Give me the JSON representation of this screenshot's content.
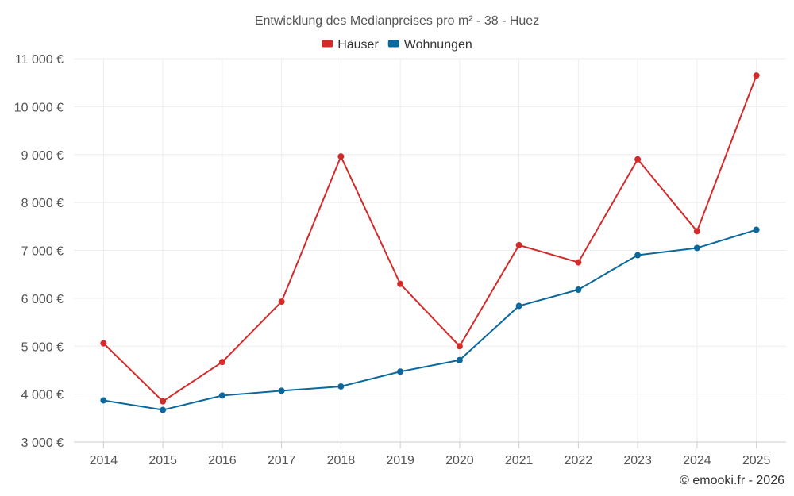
{
  "chart_data": {
    "type": "line",
    "title": "Entwicklung des Medianpreises pro m² - 38 - Huez",
    "categories": [
      "2014",
      "2015",
      "2016",
      "2017",
      "2018",
      "2019",
      "2020",
      "2021",
      "2022",
      "2023",
      "2024",
      "2025"
    ],
    "series": [
      {
        "name": "Häuser",
        "color": "#d42a2a",
        "values": [
          5060,
          3850,
          4670,
          5930,
          8960,
          6300,
          5000,
          7110,
          6750,
          8900,
          7400,
          10650
        ]
      },
      {
        "name": "Wohnungen",
        "color": "#0a689c",
        "values": [
          3870,
          3670,
          3970,
          4070,
          4160,
          4470,
          4710,
          5840,
          6180,
          6900,
          7050,
          7430
        ]
      }
    ],
    "ylim": [
      3000,
      11000
    ],
    "yticks": [
      3000,
      4000,
      5000,
      6000,
      7000,
      8000,
      9000,
      10000,
      11000
    ],
    "ytick_labels": [
      "3 000 €",
      "4 000 €",
      "5 000 €",
      "6 000 €",
      "7 000 €",
      "8 000 €",
      "9 000 €",
      "10 000 €",
      "11 000 €"
    ],
    "xlabel": "",
    "ylabel": "",
    "grid": true,
    "legend_position": "top-center",
    "credit": "© emooki.fr - 2026"
  }
}
